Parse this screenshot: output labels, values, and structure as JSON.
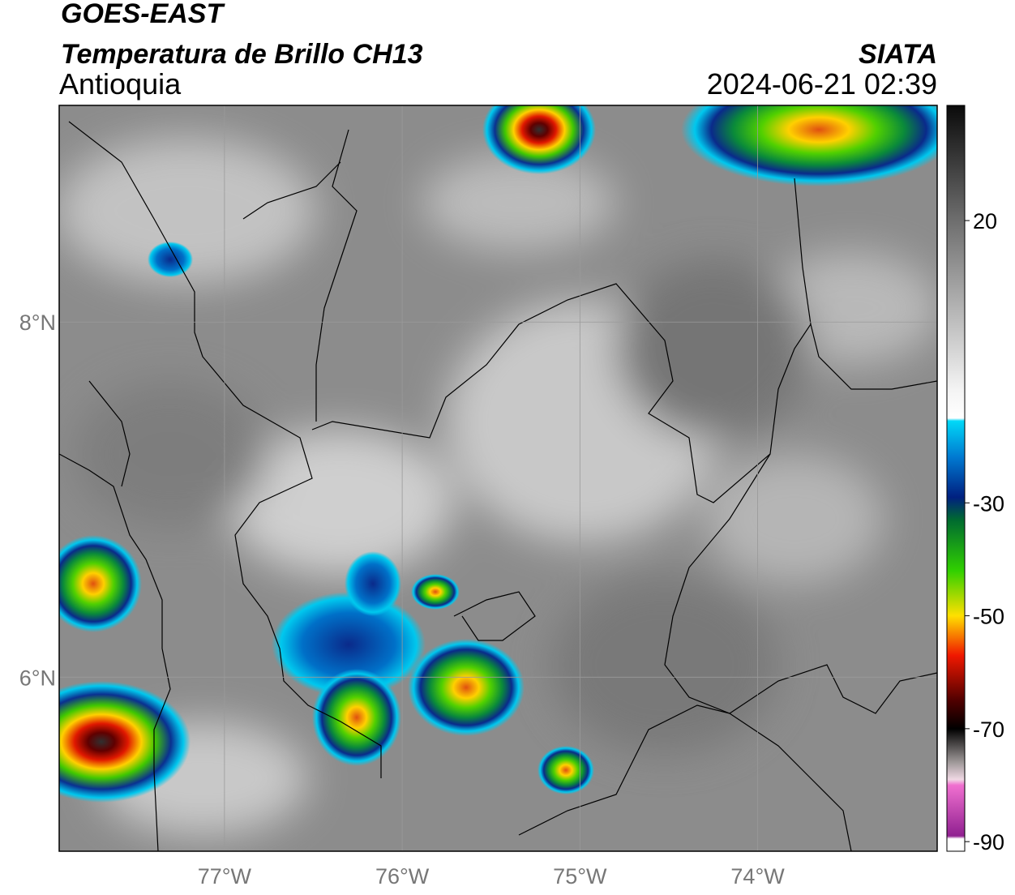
{
  "chart_data": {
    "type": "map",
    "title": "GOES-EAST",
    "subtitle": "Temperatura de Brillo CH13",
    "region": "Antioquia",
    "source": "SIATA",
    "datetime": "2024-06-21 02:39",
    "xlim": [
      -77.93,
      -72.99
    ],
    "ylim": [
      5.02,
      9.22
    ],
    "xticks": [
      {
        "value": -77,
        "label": "77°W"
      },
      {
        "value": -76,
        "label": "76°W"
      },
      {
        "value": -75,
        "label": "75°W"
      },
      {
        "value": -74,
        "label": "74°W"
      }
    ],
    "yticks": [
      {
        "value": 8,
        "label": "8°N"
      },
      {
        "value": 6,
        "label": "6°N"
      }
    ],
    "grid": true,
    "clim": [
      -91.7,
      40.4
    ],
    "cticks": [
      20,
      -30,
      -50,
      -70,
      -90
    ],
    "colormap": [
      {
        "value": 40.4,
        "color": "#0a0a0a"
      },
      {
        "value": 20,
        "color": "#6e6e6e"
      },
      {
        "value": -10,
        "color": "#f4f4f4"
      },
      {
        "value": -15,
        "color": "#ffffff"
      },
      {
        "value": -15.5,
        "color": "#00d8f8"
      },
      {
        "value": -22,
        "color": "#0078d0"
      },
      {
        "value": -29,
        "color": "#002080"
      },
      {
        "value": -33,
        "color": "#006a30"
      },
      {
        "value": -42,
        "color": "#30d000"
      },
      {
        "value": -50,
        "color": "#ffe000"
      },
      {
        "value": -57,
        "color": "#f01800"
      },
      {
        "value": -65,
        "color": "#500000"
      },
      {
        "value": -70,
        "color": "#000000"
      },
      {
        "value": -76,
        "color": "#a09a9a"
      },
      {
        "value": -79,
        "color": "#f0d8e4"
      },
      {
        "value": -80,
        "color": "#f070d0"
      },
      {
        "value": -89,
        "color": "#902090"
      },
      {
        "value": -89.5,
        "color": "#ffffff"
      }
    ]
  }
}
